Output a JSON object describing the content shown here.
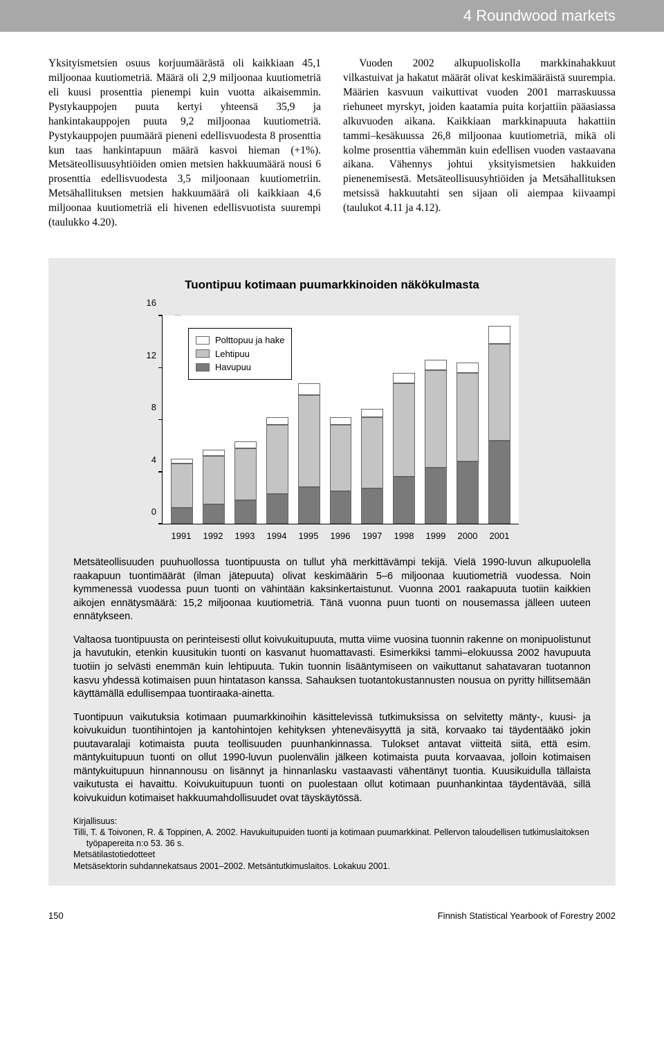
{
  "header": {
    "title": "4 Roundwood markets"
  },
  "body": {
    "col_text": "Yksityismetsien osuus korjuumäärästä oli kaikkiaan 45,1 miljoonaa kuutiometriä. Määrä oli 2,9 miljoonaa kuutiometriä eli kuusi prosenttia pienempi kuin vuotta aikaisemmin. Pystykauppojen puuta kertyi yhteensä 35,9 ja hankintakauppojen puuta 9,2 miljoonaa kuutiometriä. Pystykauppojen puumäärä pieneni edellisvuodesta 8 prosenttia kun taas hankintapuun määrä kasvoi hieman (+1%). Metsäteollisuusyhtiöiden omien metsien hakkuumäärä nousi 6 prosenttia edellisvuodesta 3,5 miljoonaan kuutiometriin. Metsähallituksen metsien hakkuumäärä oli kaikkiaan 4,6 miljoonaa kuutiometriä eli hivenen edellisvuotista suurempi (taulukko 4.20).",
    "col_text2": "Vuoden 2002 alkupuoliskolla markkinahakkuut vilkastuivat ja hakatut määrät olivat keskimääräistä suurempia. Määrien kasvuun vaikuttivat vuoden 2001 marraskuussa riehuneet myrskyt, joiden kaatamia puita korjattiin pääasiassa alkuvuoden aikana. Kaikkiaan markkinapuuta hakattiin tammi–kesäkuussa 26,8 miljoonaa kuutiometriä, mikä oli kolme prosenttia vähemmän kuin edellisen vuoden vastaavana aikana. Vähennys johtui yksityismetsien hakkuiden pienenemisestä. Metsäteollisuusyhtiöiden ja Metsähallituksen metsissä hakkuutahti sen sijaan oli aiempaa kiivaampi (taulukot 4.11 ja 4.12)."
  },
  "box": {
    "title": "Tuontipuu kotimaan puumarkkinoiden näkökulmasta",
    "p1": "Metsäteollisuuden puuhuollossa tuontipuusta on tullut yhä merkittävämpi tekijä. Vielä 1990-luvun alkupuolella raakapuun tuontimäärät (ilman jätepuuta) olivat keskimäärin 5–6 miljoonaa kuutiometriä vuodessa. Noin kymmenessä vuodessa puun tuonti on vähintään kaksinkertaistunut. Vuonna 2001 raakapuuta tuotiin kaikkien aikojen ennätysmäärä: 15,2 miljoonaa kuutiometriä. Tänä vuonna puun tuonti on nousemassa jälleen uuteen ennätykseen.",
    "p2": "Valtaosa tuontipuusta on perinteisesti ollut koivukuitupuuta, mutta viime vuosina tuonnin rakenne on monipuolistunut ja havutukin, etenkin kuusitukin tuonti on kasvanut huomattavasti. Esimerkiksi tammi–elokuussa 2002 havupuuta tuotiin jo selvästi enemmän kuin lehtipuuta. Tukin tuonnin lisääntymiseen on vaikuttanut sahatavaran tuotannon kasvu yhdessä kotimaisen puun hintatason kanssa. Sahauksen tuotantokustannusten nousua on pyritty hillitsemään käyttämällä edullisempaa tuontiraaka-ainetta.",
    "p3": "Tuontipuun vaikutuksia kotimaan puumarkkinoihin käsittelevissä tutkimuksissa on selvitetty mänty-, kuusi- ja koivukuidun tuontihintojen ja kantohintojen kehityksen yhteneväisyyttä ja sitä, korvaako tai täydentääkö jokin puutavaralaji kotimaista puuta teollisuuden puunhankinnassa. Tulokset antavat viitteitä siitä, että esim. mäntykuitupuun tuonti on ollut 1990-luvun puolenvälin jälkeen kotimaista puuta korvaavaa, jolloin kotimaisen mäntykuitupuun hinnannousu on lisännyt ja hinnanlasku vastaavasti vähentänyt tuontia. Kuusikuidulla tällaista vaikutusta ei havaittu. Koivukuitupuun tuonti on puolestaan ollut kotimaan puunhankintaa täydentävää, sillä koivukuidun kotimaiset hakkuumahdollisuudet ovat täyskäytössä.",
    "refs_label": "Kirjallisuus:",
    "ref1": "Tilli, T. & Toivonen, R. & Toppinen, A. 2002. Havukuitupuiden tuonti ja kotimaan puumarkkinat. Pellervon taloudellisen tutkimuslaitoksen työpapereita n:o 53. 36 s.",
    "ref2": "Metsätilastotiedotteet",
    "ref3": "Metsäsektorin suhdannekatsaus 2001–2002. Metsäntutkimuslaitos. Lokakuu 2001."
  },
  "chart": {
    "type": "stacked-bar",
    "unit": "milj.m³",
    "ymax": 16,
    "ytick_step": 4,
    "yticks": [
      0,
      4,
      8,
      12,
      16
    ],
    "categories": [
      "1991",
      "1992",
      "1993",
      "1994",
      "1995",
      "1996",
      "1997",
      "1998",
      "1999",
      "2000",
      "2001"
    ],
    "series": [
      {
        "name": "Havupuu",
        "color": "#7a7a7a"
      },
      {
        "name": "Lehtipuu",
        "color": "#c4c4c4"
      },
      {
        "name": "Polttopuu ja hake",
        "color": "#ffffff"
      }
    ],
    "data": {
      "Havupuu": [
        1.2,
        1.5,
        1.8,
        2.3,
        2.8,
        2.5,
        2.7,
        3.6,
        4.3,
        4.8,
        6.4
      ],
      "Lehtipuu": [
        3.4,
        3.7,
        4.0,
        5.3,
        7.1,
        5.1,
        5.5,
        7.2,
        7.5,
        6.8,
        7.4
      ],
      "Polttopuu ja hake": [
        0.4,
        0.5,
        0.5,
        0.6,
        0.9,
        0.6,
        0.6,
        0.8,
        0.8,
        0.8,
        1.4
      ]
    },
    "background_color": "#ffffff",
    "axis_color": "#000000",
    "font_size": 13,
    "legend_pos": "top-left-inside"
  },
  "footer": {
    "page": "150",
    "source": "Finnish Statistical Yearbook of Forestry 2002"
  }
}
